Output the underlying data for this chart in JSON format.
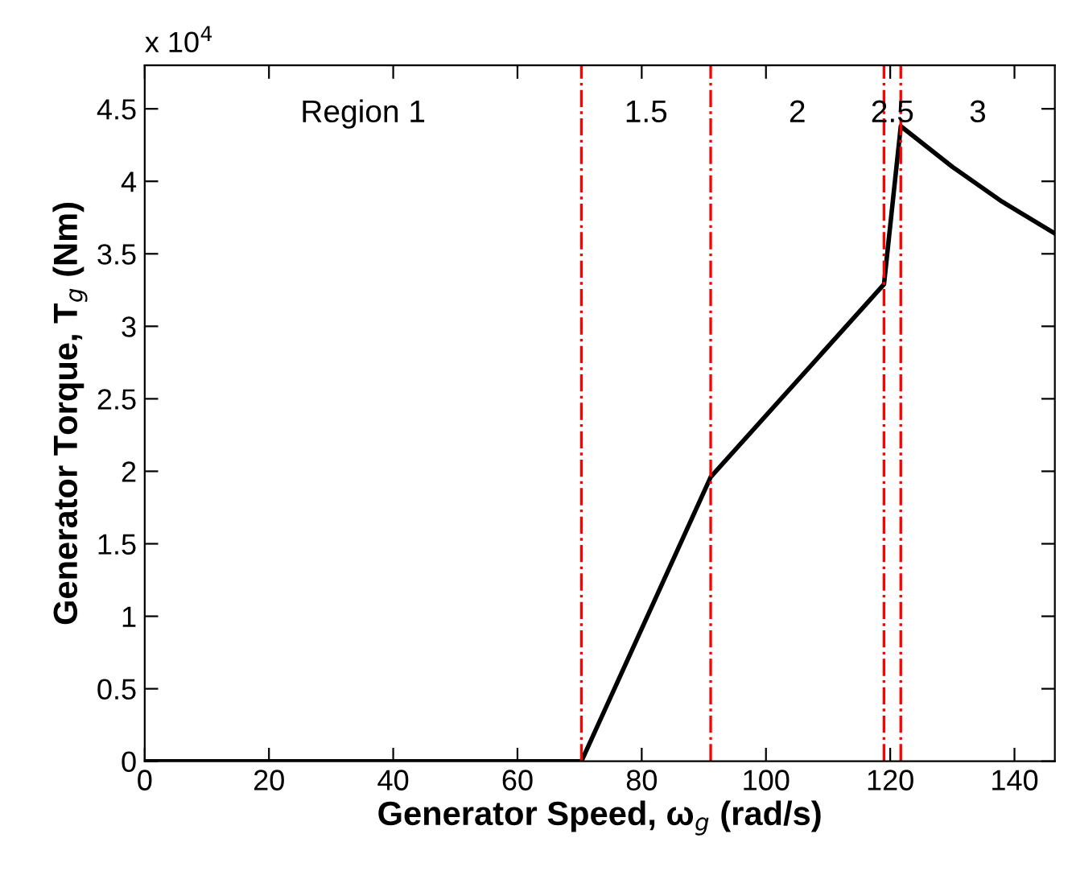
{
  "chart_data": {
    "type": "line",
    "xlabel": "Generator Speed, ω$_{g}$ (rad/s)",
    "ylabel": "Generator Torque, T$_{g}$ (Nm)",
    "series": [
      {
        "color": "#000000",
        "x": [
          0,
          70.3,
          91.1,
          119.0,
          121.7,
          130,
          138,
          146.5
        ],
        "values": [
          0,
          0,
          1.96,
          3.29,
          4.38,
          4.1,
          3.86,
          3.64
        ]
      }
    ],
    "xlim": [
      0,
      146.5
    ],
    "xticks": [
      0,
      20,
      40,
      60,
      80,
      100,
      120,
      140
    ],
    "ylim": [
      0,
      4.8
    ],
    "yticks": [
      0,
      0.5,
      1,
      1.5,
      2,
      2.5,
      3,
      3.5,
      4,
      4.5
    ],
    "ref_lines": [
      {
        "axis": "x",
        "value": 70.3,
        "color": "#ff0000",
        "line_style": "dashdot"
      },
      {
        "axis": "x",
        "value": 91.1,
        "color": "#ff0000",
        "line_style": "dashdot"
      },
      {
        "axis": "x",
        "value": 119.0,
        "color": "#ff0000",
        "line_style": "dashdot"
      },
      {
        "axis": "x",
        "value": 121.7,
        "color": "#ff0000",
        "line_style": "dashdot"
      }
    ],
    "annotations": [
      "x 10$^{4}$",
      "Region 1",
      "1.5",
      "2",
      "2.5",
      "3"
    ],
    "grid": false,
    "legend": false,
    "marker": "none",
    "line_style": "solid"
  }
}
